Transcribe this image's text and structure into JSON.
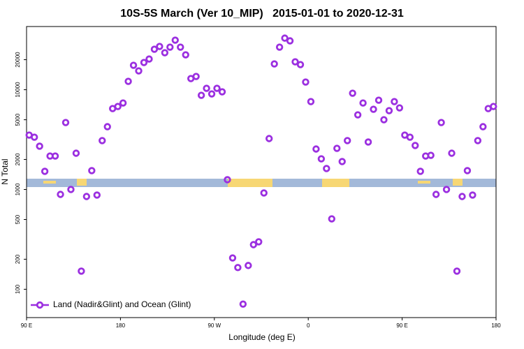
{
  "chart_data": {
    "type": "scatter",
    "title": "10S-5S March (Ver 10_MIP)   2015-01-01 to 2020-12-31",
    "xlabel": "Longitude (deg E)",
    "ylabel": "N Total",
    "xlim": [
      90,
      540
    ],
    "xticks": [
      {
        "value": 90,
        "label": "90 E"
      },
      180,
      {
        "value": 270,
        "label": "90 W"
      },
      {
        "value": 360,
        "label": "0"
      },
      {
        "value": 450,
        "label": "90 E"
      },
      {
        "value": 540,
        "label": "180"
      }
    ],
    "ylim": [
      52,
      43000
    ],
    "yticks": [
      100,
      200,
      500,
      1000,
      2000,
      5000,
      10000,
      20000
    ],
    "log_y": true,
    "legend": "bottom-left",
    "series": [
      {
        "name": "Land (Nadir&Glint) and Ocean (Glint)",
        "color": "#9b2fe0",
        "x": [
          92.5,
          97.5,
          102.5,
          107.5,
          112.5,
          117.5,
          122.5,
          127.5,
          132.5,
          137.5,
          142.5,
          147.5,
          152.5,
          157.5,
          162.5,
          167.5,
          172.5,
          177.5,
          182.5,
          187.5,
          192.5,
          197.5,
          202.5,
          207.5,
          212.5,
          217.5,
          222.5,
          227.5,
          232.5,
          237.5,
          242.5,
          247.5,
          252.5,
          257.5,
          262.5,
          267.5,
          272.5,
          277.5,
          282.5,
          287.5,
          292.5,
          297.5,
          302.5,
          307.5,
          312.5,
          317.5,
          322.5,
          327.5,
          332.5,
          337.5,
          342.5,
          347.5,
          352.5,
          357.5,
          362.5,
          367.5,
          372.5,
          377.5,
          382.5,
          387.5,
          392.5,
          397.5,
          402.5,
          407.5,
          412.5,
          417.5,
          422.5,
          427.5,
          432.5,
          437.5,
          442.5,
          447.5,
          452.5,
          457.5,
          462.5,
          467.5,
          472.5,
          477.5,
          482.5,
          487.5,
          492.5,
          497.5,
          502.5,
          507.5,
          512.5,
          517.5,
          522.5,
          527.5,
          532.5,
          537.5
        ],
        "values": [
          3510,
          3345,
          2715,
          1520,
          2165,
          2165,
          893,
          4690,
          1000,
          2310,
          152,
          851,
          1545,
          879,
          3090,
          4260,
          6470,
          6790,
          7360,
          12130,
          17580,
          15450,
          18750,
          20300,
          25460,
          27160,
          23480,
          26720,
          31400,
          26720,
          22380,
          12940,
          13580,
          8790,
          10330,
          9080,
          10330,
          9530,
          1253,
          206,
          165,
          71,
          173,
          280,
          299,
          923,
          3240,
          18150,
          26720,
          32900,
          30900,
          19040,
          17860,
          11940,
          7600,
          2545,
          2030,
          1622,
          508,
          2585,
          1905,
          3090,
          9230,
          5600,
          7360,
          2990,
          6370,
          7850,
          5000,
          6170,
          7600,
          6580,
          3510,
          3345,
          2760,
          1520,
          2165,
          2200,
          893,
          4690,
          1000,
          2310,
          152,
          851,
          1545,
          879,
          3090,
          4260,
          6470,
          6790
        ]
      }
    ]
  }
}
